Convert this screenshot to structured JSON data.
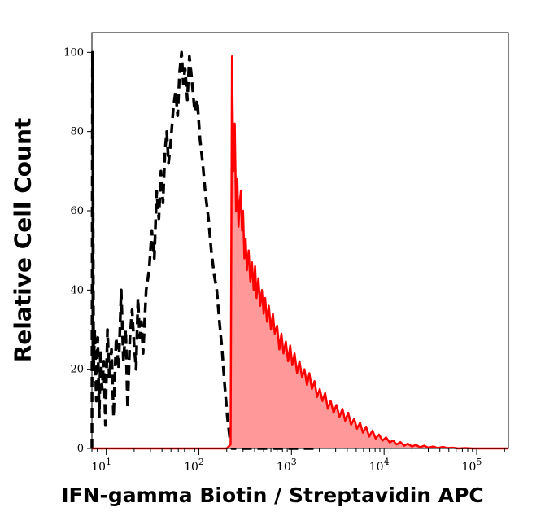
{
  "chart_data": {
    "type": "area",
    "title": "",
    "xlabel": "IFN-gamma Biotin / Streptavidin APC",
    "ylabel": "Relative Cell Count",
    "x_scale": "log",
    "xlim": [
      7,
      220000
    ],
    "ylim": [
      0,
      105
    ],
    "y_ticks": [
      {
        "value": 0,
        "label": "0"
      },
      {
        "value": 20,
        "label": "20"
      },
      {
        "value": 40,
        "label": "40"
      },
      {
        "value": 60,
        "label": "60"
      },
      {
        "value": 80,
        "label": "80"
      },
      {
        "value": 100,
        "label": "100"
      }
    ],
    "x_ticks": [
      {
        "value": 10,
        "base": "10",
        "exp": "1"
      },
      {
        "value": 100,
        "base": "10",
        "exp": "2"
      },
      {
        "value": 1000,
        "base": "10",
        "exp": "3"
      },
      {
        "value": 10000,
        "base": "10",
        "exp": "4"
      },
      {
        "value": 100000,
        "base": "10",
        "exp": "5"
      }
    ],
    "grid": false,
    "legend": "none",
    "series": [
      {
        "style": "dashed",
        "color": "#000000",
        "fill": "none",
        "points": [
          [
            7,
            0
          ],
          [
            7.1,
            100
          ],
          [
            7.3,
            20
          ],
          [
            7.5,
            30
          ],
          [
            7.8,
            12
          ],
          [
            8.1,
            28
          ],
          [
            8.4,
            8
          ],
          [
            8.7,
            25
          ],
          [
            9,
            15
          ],
          [
            9.4,
            22
          ],
          [
            9.8,
            6
          ],
          [
            10.3,
            30
          ],
          [
            10.8,
            18
          ],
          [
            11.4,
            25
          ],
          [
            12,
            8
          ],
          [
            12.8,
            28
          ],
          [
            13.6,
            20
          ],
          [
            14.5,
            40
          ],
          [
            15.3,
            22
          ],
          [
            16.2,
            30
          ],
          [
            17,
            10
          ],
          [
            18,
            28
          ],
          [
            19,
            35
          ],
          [
            20,
            26
          ],
          [
            21,
            20
          ],
          [
            22,
            38
          ],
          [
            23,
            28
          ],
          [
            24,
            32
          ],
          [
            25,
            24
          ],
          [
            27,
            40
          ],
          [
            29,
            45
          ],
          [
            31,
            55
          ],
          [
            33,
            48
          ],
          [
            35,
            65
          ],
          [
            37,
            58
          ],
          [
            39,
            70
          ],
          [
            41,
            62
          ],
          [
            43,
            75
          ],
          [
            45,
            80
          ],
          [
            47,
            72
          ],
          [
            50,
            78
          ],
          [
            53,
            86
          ],
          [
            56,
            90
          ],
          [
            59,
            84
          ],
          [
            62,
            95
          ],
          [
            65,
            100
          ],
          [
            68,
            92
          ],
          [
            71,
            96
          ],
          [
            75,
            88
          ],
          [
            79,
            99
          ],
          [
            84,
            93
          ],
          [
            90,
            85
          ],
          [
            96,
            88
          ],
          [
            103,
            78
          ],
          [
            110,
            72
          ],
          [
            118,
            64
          ],
          [
            127,
            58
          ],
          [
            136,
            50
          ],
          [
            146,
            44
          ],
          [
            156,
            40
          ],
          [
            167,
            32
          ],
          [
            178,
            25
          ],
          [
            190,
            16
          ],
          [
            203,
            8
          ],
          [
            215,
            3
          ],
          [
            228,
            0
          ],
          [
            300,
            0
          ],
          [
            2000,
            0
          ]
        ]
      },
      {
        "style": "solid",
        "color": "#ff0000",
        "fill": "#ff9999",
        "points": [
          [
            7,
            0
          ],
          [
            200,
            0
          ],
          [
            220,
            1
          ],
          [
            228,
            99
          ],
          [
            236,
            70
          ],
          [
            244,
            82
          ],
          [
            252,
            60
          ],
          [
            260,
            68
          ],
          [
            268,
            56
          ],
          [
            276,
            62
          ],
          [
            284,
            65
          ],
          [
            292,
            55
          ],
          [
            300,
            60
          ],
          [
            310,
            48
          ],
          [
            320,
            53
          ],
          [
            330,
            45
          ],
          [
            345,
            50
          ],
          [
            360,
            42
          ],
          [
            375,
            47
          ],
          [
            390,
            40
          ],
          [
            405,
            46
          ],
          [
            420,
            38
          ],
          [
            440,
            43
          ],
          [
            460,
            36
          ],
          [
            480,
            40
          ],
          [
            500,
            34
          ],
          [
            520,
            38
          ],
          [
            545,
            32
          ],
          [
            570,
            36
          ],
          [
            600,
            30
          ],
          [
            630,
            34
          ],
          [
            660,
            29
          ],
          [
            700,
            31
          ],
          [
            740,
            25
          ],
          [
            780,
            29
          ],
          [
            820,
            24
          ],
          [
            870,
            27
          ],
          [
            920,
            22
          ],
          [
            970,
            26
          ],
          [
            1020,
            21
          ],
          [
            1080,
            24
          ],
          [
            1150,
            19
          ],
          [
            1220,
            22
          ],
          [
            1300,
            18
          ],
          [
            1380,
            20
          ],
          [
            1470,
            16
          ],
          [
            1560,
            19
          ],
          [
            1660,
            15
          ],
          [
            1770,
            17
          ],
          [
            1890,
            13
          ],
          [
            2020,
            15
          ],
          [
            2160,
            12
          ],
          [
            2310,
            14
          ],
          [
            2470,
            10
          ],
          [
            2650,
            12
          ],
          [
            2850,
            9
          ],
          [
            3050,
            11
          ],
          [
            3300,
            8
          ],
          [
            3550,
            10
          ],
          [
            3800,
            7
          ],
          [
            4100,
            9
          ],
          [
            4400,
            6
          ],
          [
            4750,
            7.5
          ],
          [
            5100,
            5
          ],
          [
            5500,
            6.5
          ],
          [
            5900,
            4
          ],
          [
            6400,
            5.5
          ],
          [
            6900,
            3
          ],
          [
            7500,
            4.5
          ],
          [
            8100,
            2.5
          ],
          [
            8800,
            3.5
          ],
          [
            9600,
            2
          ],
          [
            10500,
            2.8
          ],
          [
            11500,
            1.5
          ],
          [
            12500,
            2
          ],
          [
            13700,
            1
          ],
          [
            15000,
            1.6
          ],
          [
            16500,
            0.7
          ],
          [
            18000,
            1.2
          ],
          [
            20000,
            0.5
          ],
          [
            22000,
            0.9
          ],
          [
            24500,
            0.3
          ],
          [
            27000,
            0.7
          ],
          [
            30000,
            0.2
          ],
          [
            34000,
            0.5
          ],
          [
            38000,
            0.1
          ],
          [
            43000,
            0.4
          ],
          [
            48000,
            0.1
          ],
          [
            55000,
            0.2
          ],
          [
            63000,
            0
          ],
          [
            75000,
            0.1
          ],
          [
            90000,
            0
          ],
          [
            220000,
            0
          ]
        ]
      }
    ]
  }
}
